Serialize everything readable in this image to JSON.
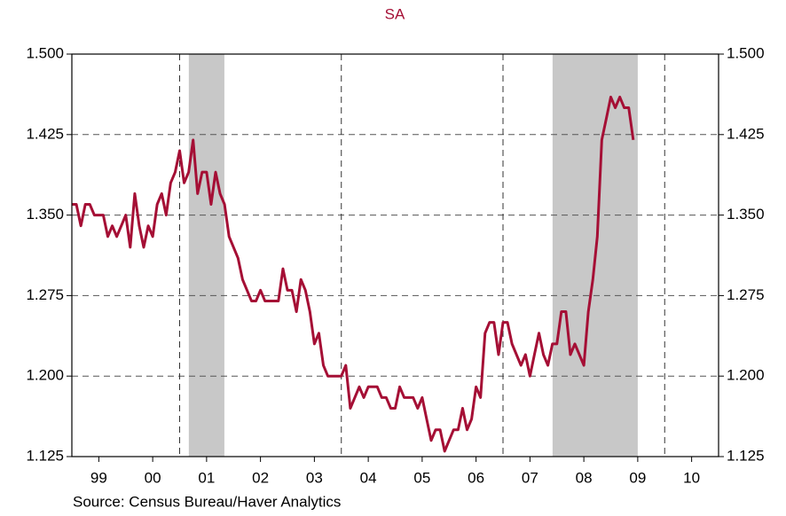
{
  "chart_data": {
    "type": "line",
    "title": "SA",
    "title_color": "#a50f35",
    "source": "Source:  Census Bureau/Haver Analytics",
    "x": [
      1999.0,
      1999.083,
      1999.167,
      1999.25,
      1999.333,
      1999.417,
      1999.5,
      1999.583,
      1999.667,
      1999.75,
      1999.833,
      1999.917,
      2000.0,
      2000.083,
      2000.167,
      2000.25,
      2000.333,
      2000.417,
      2000.5,
      2000.583,
      2000.667,
      2000.75,
      2000.833,
      2000.917,
      2001.0,
      2001.083,
      2001.167,
      2001.25,
      2001.333,
      2001.417,
      2001.5,
      2001.583,
      2001.667,
      2001.75,
      2001.833,
      2001.917,
      2002.0,
      2002.083,
      2002.167,
      2002.25,
      2002.333,
      2002.417,
      2002.5,
      2002.583,
      2002.667,
      2002.75,
      2002.833,
      2002.917,
      2003.0,
      2003.083,
      2003.167,
      2003.25,
      2003.333,
      2003.417,
      2003.5,
      2003.583,
      2003.667,
      2003.75,
      2003.833,
      2003.917,
      2004.0,
      2004.083,
      2004.167,
      2004.25,
      2004.333,
      2004.417,
      2004.5,
      2004.583,
      2004.667,
      2004.75,
      2004.833,
      2004.917,
      2005.0,
      2005.083,
      2005.167,
      2005.25,
      2005.333,
      2005.417,
      2005.5,
      2005.583,
      2005.667,
      2005.75,
      2005.833,
      2005.917,
      2006.0,
      2006.083,
      2006.167,
      2006.25,
      2006.333,
      2006.417,
      2006.5,
      2006.583,
      2006.667,
      2006.75,
      2006.833,
      2006.917,
      2007.0,
      2007.083,
      2007.167,
      2007.25,
      2007.333,
      2007.417,
      2007.5,
      2007.583,
      2007.667,
      2007.75,
      2007.833,
      2007.917,
      2008.0,
      2008.083,
      2008.167,
      2008.25,
      2008.333,
      2008.417,
      2008.5,
      2008.583,
      2008.667,
      2008.75,
      2008.833,
      2008.917,
      2009.0,
      2009.083,
      2009.167,
      2009.25,
      2009.333,
      2009.417
    ],
    "series": [
      {
        "color": "#a50f35",
        "values": [
          1.36,
          1.36,
          1.34,
          1.36,
          1.36,
          1.35,
          1.35,
          1.35,
          1.33,
          1.34,
          1.33,
          1.34,
          1.35,
          1.32,
          1.37,
          1.34,
          1.32,
          1.34,
          1.33,
          1.36,
          1.37,
          1.35,
          1.38,
          1.39,
          1.41,
          1.38,
          1.39,
          1.42,
          1.37,
          1.39,
          1.39,
          1.36,
          1.39,
          1.37,
          1.36,
          1.33,
          1.32,
          1.31,
          1.29,
          1.28,
          1.27,
          1.27,
          1.28,
          1.27,
          1.27,
          1.27,
          1.27,
          1.3,
          1.28,
          1.28,
          1.26,
          1.29,
          1.28,
          1.26,
          1.23,
          1.24,
          1.21,
          1.2,
          1.2,
          1.2,
          1.2,
          1.21,
          1.17,
          1.18,
          1.19,
          1.18,
          1.19,
          1.19,
          1.19,
          1.18,
          1.18,
          1.17,
          1.17,
          1.19,
          1.18,
          1.18,
          1.18,
          1.17,
          1.18,
          1.16,
          1.14,
          1.15,
          1.15,
          1.13,
          1.14,
          1.15,
          1.15,
          1.17,
          1.15,
          1.16,
          1.19,
          1.18,
          1.24,
          1.25,
          1.25,
          1.22,
          1.25,
          1.25,
          1.23,
          1.22,
          1.21,
          1.22,
          1.2,
          1.22,
          1.24,
          1.22,
          1.21,
          1.23,
          1.23,
          1.26,
          1.26,
          1.22,
          1.23,
          1.22,
          1.21,
          1.26,
          1.29,
          1.33,
          1.42,
          1.44,
          1.46,
          1.45,
          1.46,
          1.45,
          1.45,
          1.42
        ]
      }
    ],
    "xlim": [
      1999,
      2011
    ],
    "xticks": [
      {
        "value": 1999.5,
        "label": "99"
      },
      {
        "value": 2000.5,
        "label": "00"
      },
      {
        "value": 2001.5,
        "label": "01"
      },
      {
        "value": 2002.5,
        "label": "02"
      },
      {
        "value": 2003.5,
        "label": "03"
      },
      {
        "value": 2004.5,
        "label": "04"
      },
      {
        "value": 2005.5,
        "label": "05"
      },
      {
        "value": 2006.5,
        "label": "06"
      },
      {
        "value": 2007.5,
        "label": "07"
      },
      {
        "value": 2008.5,
        "label": "08"
      },
      {
        "value": 2009.5,
        "label": "09"
      },
      {
        "value": 2010.5,
        "label": "10"
      }
    ],
    "ylim": [
      1.125,
      1.5
    ],
    "yticks": [
      {
        "value": 1.125,
        "label": "1.125"
      },
      {
        "value": 1.2,
        "label": "1.200"
      },
      1.275,
      {
        "value": 1.35,
        "label": "1.350"
      },
      1.425,
      {
        "value": 1.5,
        "label": "1.500"
      }
    ],
    "y2lim": [
      1.125,
      1.5
    ],
    "y2ticks": [
      {
        "value": 1.125,
        "label": "1.125"
      },
      {
        "value": 1.2,
        "label": "1.200"
      },
      1.275,
      {
        "value": 1.35,
        "label": "1.350"
      },
      1.425,
      {
        "value": 1.5,
        "label": "1.500"
      }
    ],
    "vlines": [
      2001,
      2004,
      2007,
      2010
    ],
    "shaded": [
      [
        2001.17,
        2001.83
      ],
      [
        2007.92,
        2009.5
      ]
    ],
    "shade_color": "#c8c8c8",
    "grid": true
  }
}
